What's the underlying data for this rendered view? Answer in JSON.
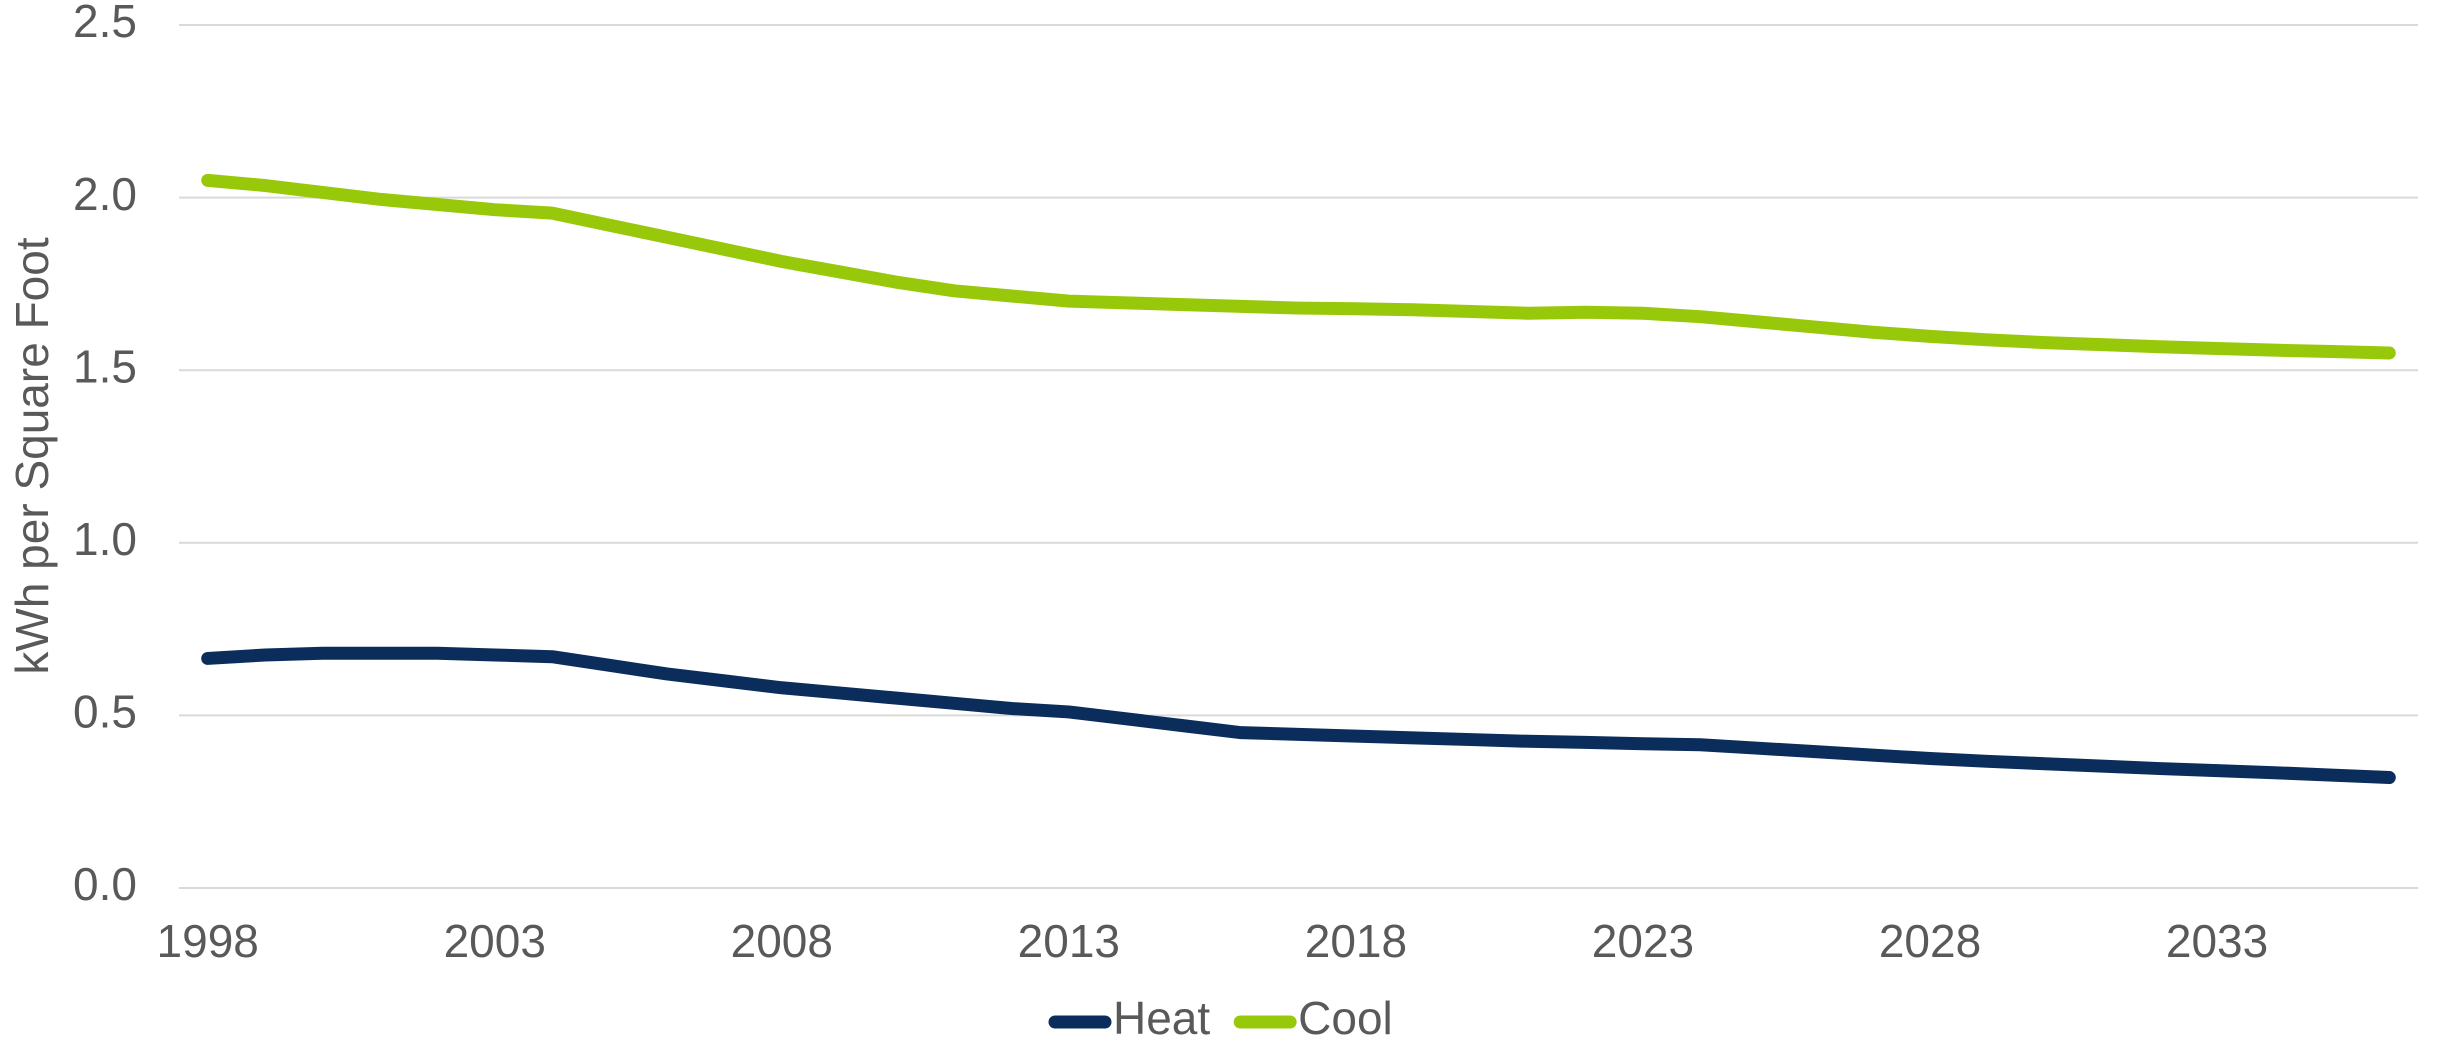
{
  "chart_data": {
    "type": "line",
    "y_label": "kWh per Square Foot",
    "x": [
      1998,
      1999,
      2000,
      2001,
      2002,
      2003,
      2004,
      2005,
      2006,
      2007,
      2008,
      2009,
      2010,
      2011,
      2012,
      2013,
      2014,
      2015,
      2016,
      2017,
      2018,
      2019,
      2020,
      2021,
      2022,
      2023,
      2024,
      2025,
      2026,
      2027,
      2028,
      2029,
      2030,
      2031,
      2032,
      2033,
      2034,
      2035,
      2036
    ],
    "series": [
      {
        "name": "Heat",
        "color": "#0b2d5b",
        "values": [
          0.665,
          0.675,
          0.68,
          0.68,
          0.68,
          0.675,
          0.67,
          0.645,
          0.62,
          0.6,
          0.58,
          0.565,
          0.55,
          0.535,
          0.52,
          0.51,
          0.49,
          0.47,
          0.45,
          0.445,
          0.44,
          0.435,
          0.43,
          0.425,
          0.422,
          0.418,
          0.415,
          0.405,
          0.395,
          0.385,
          0.375,
          0.367,
          0.36,
          0.353,
          0.346,
          0.34,
          0.334,
          0.327,
          0.32
        ]
      },
      {
        "name": "Cool",
        "color": "#97c90a",
        "values": [
          2.05,
          2.035,
          2.015,
          1.995,
          1.98,
          1.965,
          1.955,
          1.92,
          1.885,
          1.85,
          1.815,
          1.785,
          1.755,
          1.73,
          1.715,
          1.7,
          1.695,
          1.69,
          1.685,
          1.68,
          1.678,
          1.675,
          1.67,
          1.665,
          1.668,
          1.665,
          1.655,
          1.64,
          1.625,
          1.61,
          1.598,
          1.588,
          1.58,
          1.574,
          1.568,
          1.563,
          1.558,
          1.554,
          1.55
        ]
      }
    ],
    "xlim": [
      1997.5,
      2036.5
    ],
    "xticks": [
      1998,
      2003,
      2008,
      2013,
      2018,
      2023,
      2028,
      2033
    ],
    "ylim": [
      0,
      2.5
    ],
    "yticks": [
      {
        "value": 0,
        "label": "0.0"
      },
      0.5,
      {
        "value": 1,
        "label": "1.0"
      },
      1.5,
      {
        "value": 2,
        "label": "2.0"
      },
      2.5
    ],
    "grid": true,
    "legend": "bottom"
  }
}
